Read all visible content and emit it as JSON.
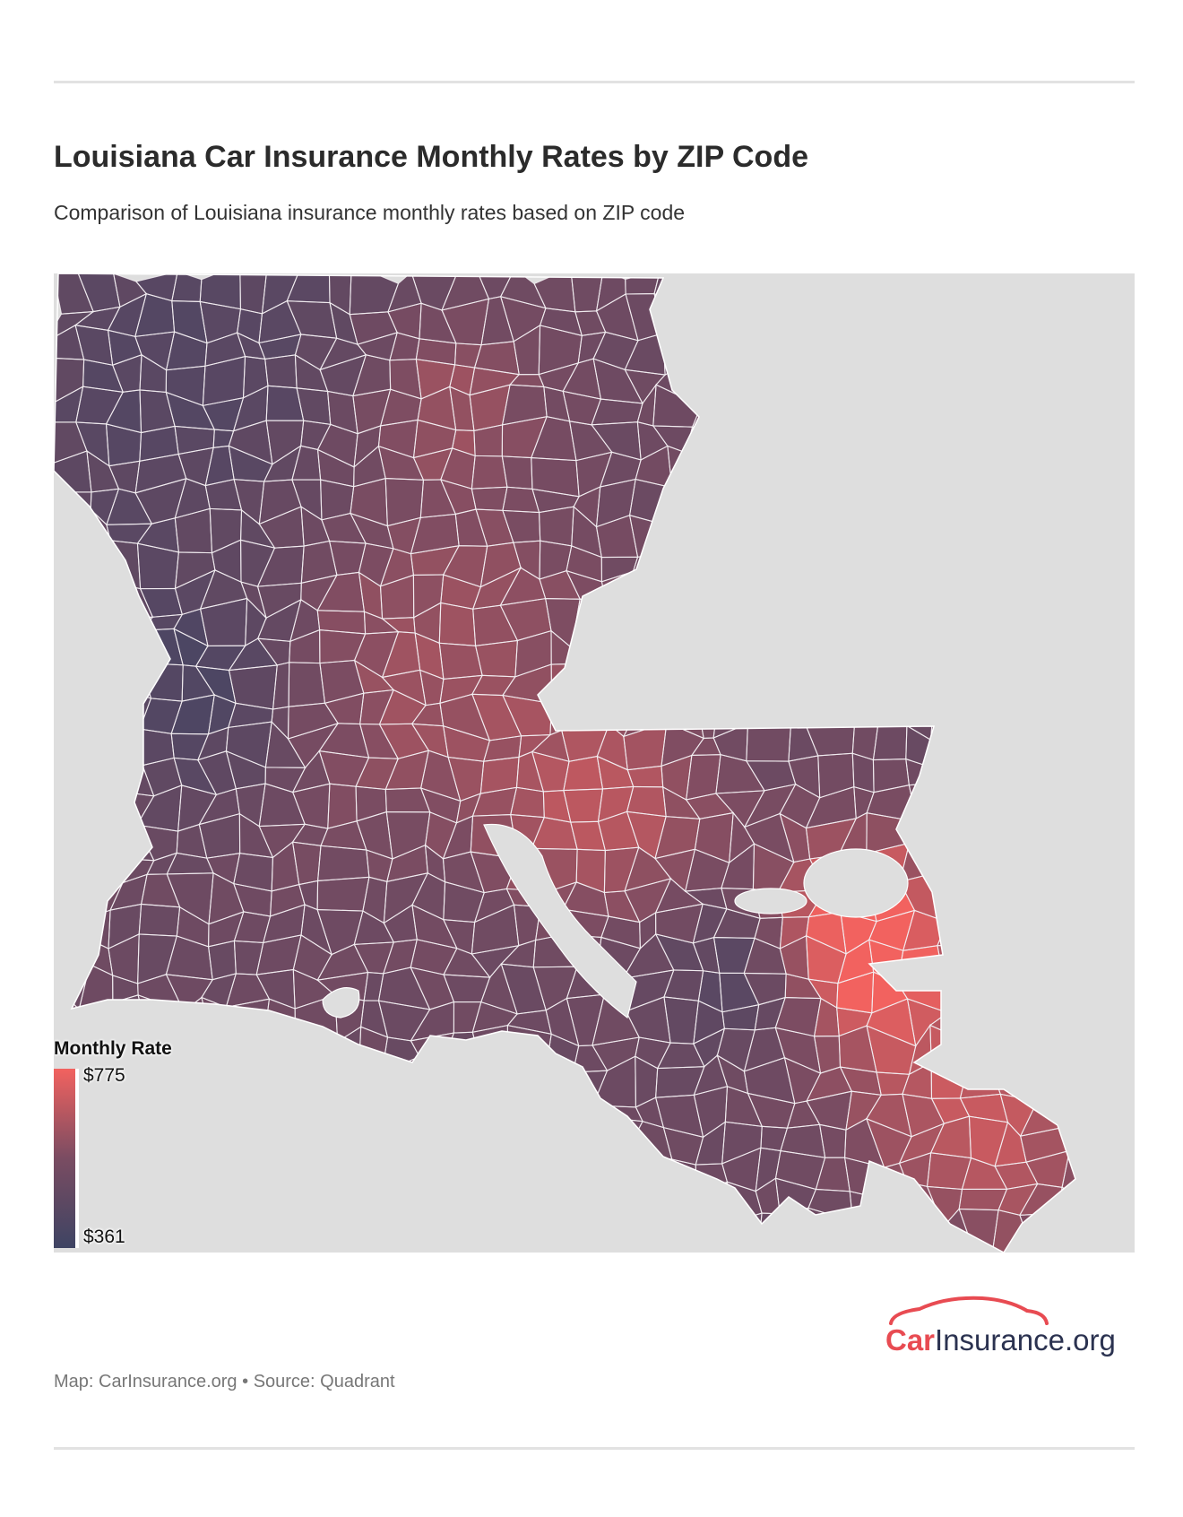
{
  "title": "Louisiana Car Insurance Monthly Rates by ZIP Code",
  "subtitle": "Comparison of Louisiana insurance monthly rates based on ZIP code",
  "legend": {
    "title": "Monthly Rate",
    "max_label": "$775",
    "min_label": "$361",
    "min_value": 361,
    "max_value": 775,
    "color_low": "#3e4463",
    "color_high": "#f2625f"
  },
  "map": {
    "region": "Louisiana",
    "background_color": "#dedede",
    "boundary_color": "#ffffff"
  },
  "logo": {
    "part1": "Car",
    "part2": "Insurance.org",
    "accent_color": "#e84b52",
    "text_color": "#2b3250"
  },
  "footer": {
    "map_credit": "Map: CarInsurance.org",
    "separator": "•",
    "source": "Source: Quadrant"
  }
}
